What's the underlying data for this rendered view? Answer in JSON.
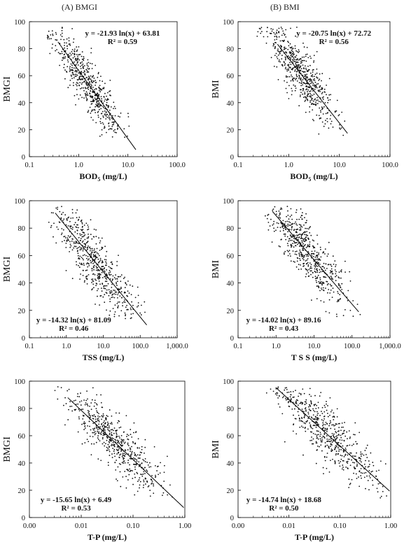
{
  "panels_header": {
    "left": "(A) BMGI",
    "right": "(B) BMI"
  },
  "chart_data": [
    {
      "id": "bod-bmgi",
      "type": "scatter",
      "xscale": "log",
      "xlim": [
        0.1,
        100
      ],
      "ylim": [
        0,
        100
      ],
      "xticks": [
        "0.1",
        "1.0",
        "10.0",
        "100.0"
      ],
      "yticks": [
        "0",
        "20",
        "40",
        "60",
        "80",
        "100"
      ],
      "xlabel": "BOD",
      "xlabel_sub": "5",
      "xlabel_unit": " (mg/L)",
      "ylabel": "BMGI",
      "eq": "y = -21.93 ln(x) + 63.81",
      "r2": "R² = 0.59",
      "eq_pos": "top-right",
      "fit": {
        "a": -21.93,
        "b": 63.81,
        "x0": 0.38,
        "x1": 14.5
      },
      "cloud": {
        "x_center": 1.5,
        "x_sigma": 0.65,
        "resid_sd": 9.5,
        "n": 560,
        "seed": 11
      }
    },
    {
      "id": "bod-bmi",
      "type": "scatter",
      "xscale": "log",
      "xlim": [
        0.1,
        100
      ],
      "ylim": [
        0,
        100
      ],
      "xticks": [
        "0.1",
        "1.0",
        "10.0",
        "100.0"
      ],
      "yticks": [
        "0",
        "20",
        "40",
        "60",
        "80",
        "100"
      ],
      "xlabel": "BOD",
      "xlabel_sub": "5",
      "xlabel_unit": " (mg/L)",
      "ylabel": "BMI",
      "eq": "y = -20.75 ln(x) + 72.72",
      "r2": "R² = 0.56",
      "eq_pos": "top-right",
      "fit": {
        "a": -20.75,
        "b": 72.72,
        "x0": 0.6,
        "x1": 14.5
      },
      "cloud": {
        "x_center": 1.5,
        "x_sigma": 0.65,
        "resid_sd": 10,
        "n": 560,
        "seed": 23
      }
    },
    {
      "id": "tss-bmgi",
      "type": "scatter",
      "xscale": "log",
      "xlim": [
        0.1,
        1000
      ],
      "ylim": [
        0,
        100
      ],
      "xticks": [
        "0.1",
        "1.0",
        "10.0",
        "100.0",
        "1,000.0"
      ],
      "yticks": [
        "0",
        "20",
        "40",
        "60",
        "80",
        "100"
      ],
      "xlabel": "TSS",
      "xlabel_sub": "",
      "xlabel_unit": " (mg/L)",
      "ylabel": "BMGI",
      "eq": "y = -14.32 ln(x) + 81.09",
      "r2": "R² = 0.46",
      "eq_pos": "bottom-left",
      "fit": {
        "a": -14.32,
        "b": 81.09,
        "x0": 0.5,
        "x1": 150
      },
      "cloud": {
        "x_center": 6,
        "x_sigma": 1.0,
        "resid_sd": 11,
        "n": 560,
        "seed": 37
      }
    },
    {
      "id": "tss-bmi",
      "type": "scatter",
      "xscale": "log",
      "xlim": [
        0.1,
        1000
      ],
      "ylim": [
        0,
        100
      ],
      "xticks": [
        "0.1",
        "1.0",
        "10.0",
        "100.0",
        "1,000.0"
      ],
      "yticks": [
        "0",
        "20",
        "40",
        "60",
        "80",
        "100"
      ],
      "xlabel": "T S S",
      "xlabel_sub": "",
      "xlabel_unit": " (mg/L)",
      "ylabel": "BMI",
      "eq": "y = -14.02 ln(x) + 89.16",
      "r2": "R² = 0.43",
      "eq_pos": "bottom-left",
      "fit": {
        "a": -14.02,
        "b": 89.16,
        "x0": 0.8,
        "x1": 150
      },
      "cloud": {
        "x_center": 6,
        "x_sigma": 1.0,
        "resid_sd": 11,
        "n": 560,
        "seed": 41
      }
    },
    {
      "id": "tp-bmgi",
      "type": "scatter",
      "xscale": "log",
      "xlim": [
        0.001,
        1
      ],
      "ylim": [
        0,
        100
      ],
      "xticks": [
        "0.00",
        "0.01",
        "0.10",
        "1.00"
      ],
      "yticks": [
        "0",
        "20",
        "40",
        "60",
        "80",
        "100"
      ],
      "xlabel": "T-P",
      "xlabel_sub": "",
      "xlabel_unit": " (mg/L)",
      "ylabel": "BMGI",
      "eq": "y = -15.65 ln(x) + 6.49",
      "r2": "R² = 0.53",
      "eq_pos": "bottom-left",
      "fit": {
        "a": -15.65,
        "b": 6.49,
        "x0": 0.0055,
        "x1": 0.95
      },
      "cloud": {
        "x_center": 0.05,
        "x_sigma": 0.95,
        "resid_sd": 10,
        "n": 560,
        "seed": 53
      }
    },
    {
      "id": "tp-bmi",
      "type": "scatter",
      "xscale": "log",
      "xlim": [
        0.001,
        1
      ],
      "ylim": [
        0,
        100
      ],
      "xticks": [
        "0.00",
        "0.01",
        "0.10",
        "1.00"
      ],
      "yticks": [
        "0",
        "20",
        "40",
        "60",
        "80",
        "100"
      ],
      "xlabel": "T-P",
      "xlabel_sub": "",
      "xlabel_unit": " (mg/L)",
      "ylabel": "BMI",
      "eq": "y = -14.74 ln(x) + 18.68",
      "r2": "R² = 0.50",
      "eq_pos": "bottom-left",
      "fit": {
        "a": -14.74,
        "b": 18.68,
        "x0": 0.0055,
        "x1": 0.95
      },
      "cloud": {
        "x_center": 0.05,
        "x_sigma": 0.95,
        "resid_sd": 10,
        "n": 560,
        "seed": 67
      }
    }
  ]
}
